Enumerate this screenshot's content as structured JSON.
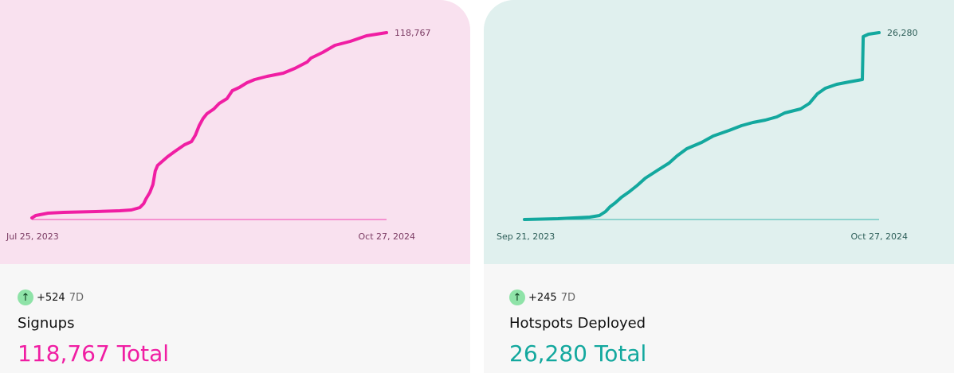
{
  "chart_data": [
    {
      "type": "line",
      "title": "Signups",
      "color": "#f01ea3",
      "bg": "#f9e1ef",
      "label_color": "#7a3a62",
      "x_unit": "days since Jul 25, 2023",
      "x_start_label": "Jul 25, 2023",
      "x_end_label": "Oct 27, 2024",
      "end_value_label": "118,767",
      "xlim": [
        0,
        460
      ],
      "ylim": [
        0,
        118767
      ],
      "x": [
        0,
        5,
        21,
        41,
        83,
        114,
        129,
        140,
        145,
        148,
        153,
        157,
        160,
        163,
        176,
        186,
        198,
        207,
        212,
        217,
        222,
        227,
        236,
        243,
        253,
        260,
        269,
        279,
        289,
        305,
        326,
        341,
        357,
        362,
        377,
        393,
        413,
        434,
        460
      ],
      "y": [
        1011,
        2527,
        4043,
        4549,
        5054,
        5559,
        6065,
        7581,
        10108,
        13140,
        17184,
        22238,
        30829,
        34367,
        39927,
        43464,
        47508,
        49529,
        53572,
        59637,
        64186,
        67218,
        70251,
        73788,
        76821,
        81875,
        83896,
        86929,
        88950,
        90972,
        92994,
        96026,
        100069,
        102596,
        106134,
        110683,
        113210,
        116747,
        118767
      ]
    },
    {
      "type": "line",
      "title": "Hotspots Deployed",
      "color": "#13a89e",
      "bg": "#e0f0ee",
      "label_color": "#2d5e58",
      "x_unit": "days since Sep 21, 2023",
      "x_start_label": "Sep 21, 2023",
      "x_end_label": "Oct 27, 2024",
      "end_value_label": "26,280",
      "xlim": [
        0,
        402
      ],
      "ylim": [
        0,
        26280
      ],
      "x": [
        0,
        38,
        74,
        85,
        92,
        97,
        103,
        110,
        119,
        128,
        137,
        151,
        164,
        173,
        184,
        201,
        214,
        232,
        246,
        259,
        273,
        286,
        295,
        313,
        323,
        332,
        341,
        354,
        368,
        383,
        384,
        390,
        402
      ],
      "y": [
        0,
        112,
        336,
        559,
        1118,
        1789,
        2348,
        3131,
        3914,
        4808,
        5815,
        6933,
        7940,
        8946,
        9953,
        10847,
        11742,
        12525,
        13196,
        13643,
        13979,
        14426,
        14985,
        15545,
        16327,
        17669,
        18452,
        19011,
        19347,
        19682,
        25721,
        26056,
        26280
      ]
    }
  ],
  "cards": [
    {
      "delta": "+524",
      "period": "7D",
      "name": "Signups",
      "total": "118,767 Total",
      "arrow": "arrow-up-icon"
    },
    {
      "delta": "+245",
      "period": "7D",
      "name": "Hotspots Deployed",
      "total": "26,280 Total",
      "arrow": "arrow-up-icon"
    }
  ]
}
